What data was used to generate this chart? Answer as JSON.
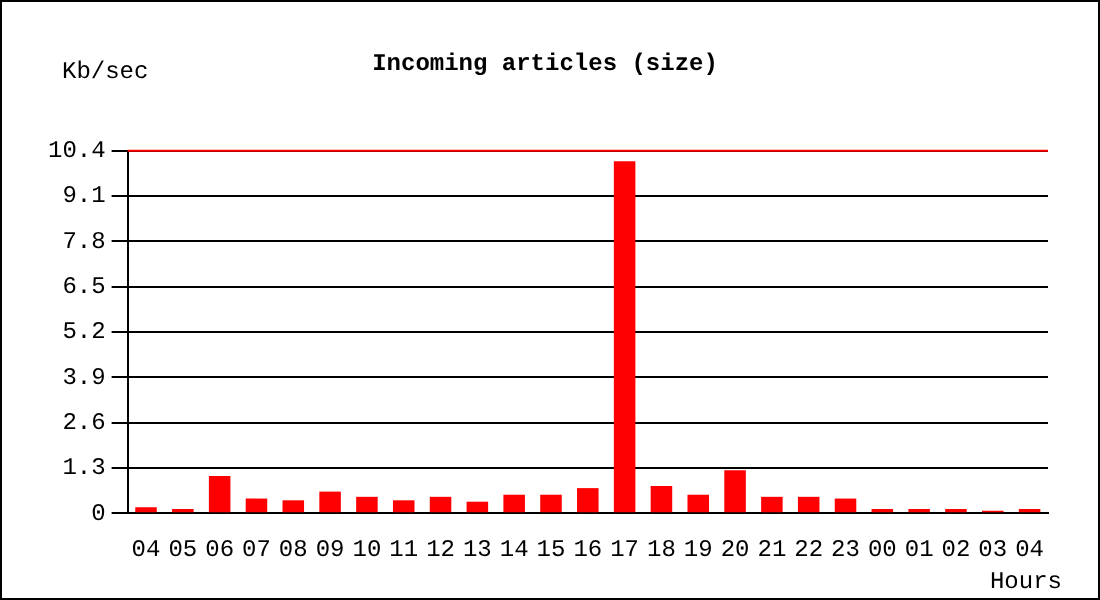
{
  "chart_data": {
    "type": "bar",
    "title": "Incoming articles (size)",
    "xlabel": "Hours",
    "ylabel": "Kb/sec",
    "categories": [
      "04",
      "05",
      "06",
      "07",
      "08",
      "09",
      "10",
      "11",
      "12",
      "13",
      "14",
      "15",
      "16",
      "17",
      "18",
      "19",
      "20",
      "21",
      "22",
      "23",
      "00",
      "01",
      "02",
      "03",
      "04"
    ],
    "values": [
      0.17,
      0.12,
      1.07,
      0.42,
      0.37,
      0.62,
      0.47,
      0.37,
      0.47,
      0.33,
      0.53,
      0.53,
      0.72,
      10.1,
      0.78,
      0.53,
      1.23,
      0.47,
      0.47,
      0.42,
      0.12,
      0.12,
      0.12,
      0.07,
      0.12
    ],
    "color": "#ff0000",
    "ylim": [
      0,
      10.4
    ],
    "yticks": [
      0,
      1.3,
      2.6,
      3.9,
      5.2,
      6.5,
      7.8,
      9.1,
      10.4
    ],
    "grid": "y",
    "legend": false,
    "ref_lines": [
      {
        "axis": "y",
        "value": 10.4,
        "color": "#ff0000"
      }
    ]
  }
}
